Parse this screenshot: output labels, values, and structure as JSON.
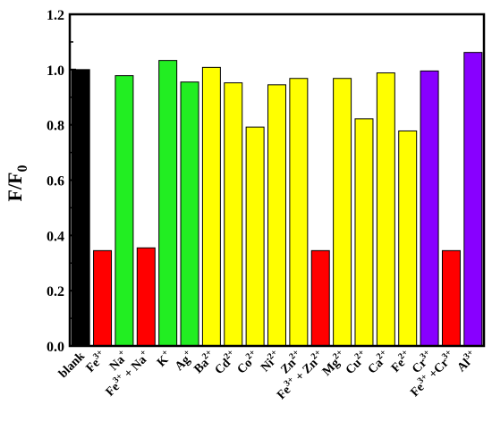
{
  "chart_data": {
    "type": "bar",
    "title": "",
    "xlabel": "",
    "ylabel": "F/F0",
    "ylabel_parts": {
      "main": "F/F",
      "sub": "0"
    },
    "ylim": [
      0,
      1.2
    ],
    "yticks": [
      "0.0",
      "0.2",
      "0.4",
      "0.6",
      "0.8",
      "1.0",
      "1.2"
    ],
    "grid": false,
    "categories": [
      {
        "base": "blank",
        "sup": ""
      },
      {
        "base": "Fe",
        "sup": "3+"
      },
      {
        "base": "Na",
        "sup": "+"
      },
      {
        "base": "Fe",
        "sup": "3+",
        "mid": " + Na",
        "sup2": "+"
      },
      {
        "base": "K",
        "sup": "+"
      },
      {
        "base": "Ag",
        "sup": "+"
      },
      {
        "base": "Ba",
        "sup": "2+"
      },
      {
        "base": "Cd",
        "sup": "2+"
      },
      {
        "base": "Co",
        "sup": "2+"
      },
      {
        "base": "Ni",
        "sup": "2+"
      },
      {
        "base": "Zn",
        "sup": "2+"
      },
      {
        "base": "Fe",
        "sup": "3+",
        "mid": " + Zn",
        "sup2": "2+"
      },
      {
        "base": "Mg",
        "sup": "2+"
      },
      {
        "base": "Cu",
        "sup": "2+"
      },
      {
        "base": "Ca",
        "sup": "2+"
      },
      {
        "base": "Fe",
        "sup": "2+"
      },
      {
        "base": "Cr",
        "sup": "3+"
      },
      {
        "base": "Fe",
        "sup": "3+",
        "mid": " +Cr",
        "sup2": "3+"
      },
      {
        "base": "Al",
        "sup": "3+"
      }
    ],
    "values": [
      1.0,
      0.345,
      0.978,
      0.355,
      1.033,
      0.955,
      1.008,
      0.952,
      0.792,
      0.945,
      0.968,
      0.345,
      0.968,
      0.822,
      0.988,
      0.778,
      0.995,
      0.345,
      1.062
    ],
    "colors": [
      "#000000",
      "#ff0000",
      "#22ee22",
      "#ff0000",
      "#22ee22",
      "#22ee22",
      "#ffff00",
      "#ffff00",
      "#ffff00",
      "#ffff00",
      "#ffff00",
      "#ff0000",
      "#ffff00",
      "#ffff00",
      "#ffff00",
      "#ffff00",
      "#8800ff",
      "#ff0000",
      "#8800ff"
    ]
  }
}
